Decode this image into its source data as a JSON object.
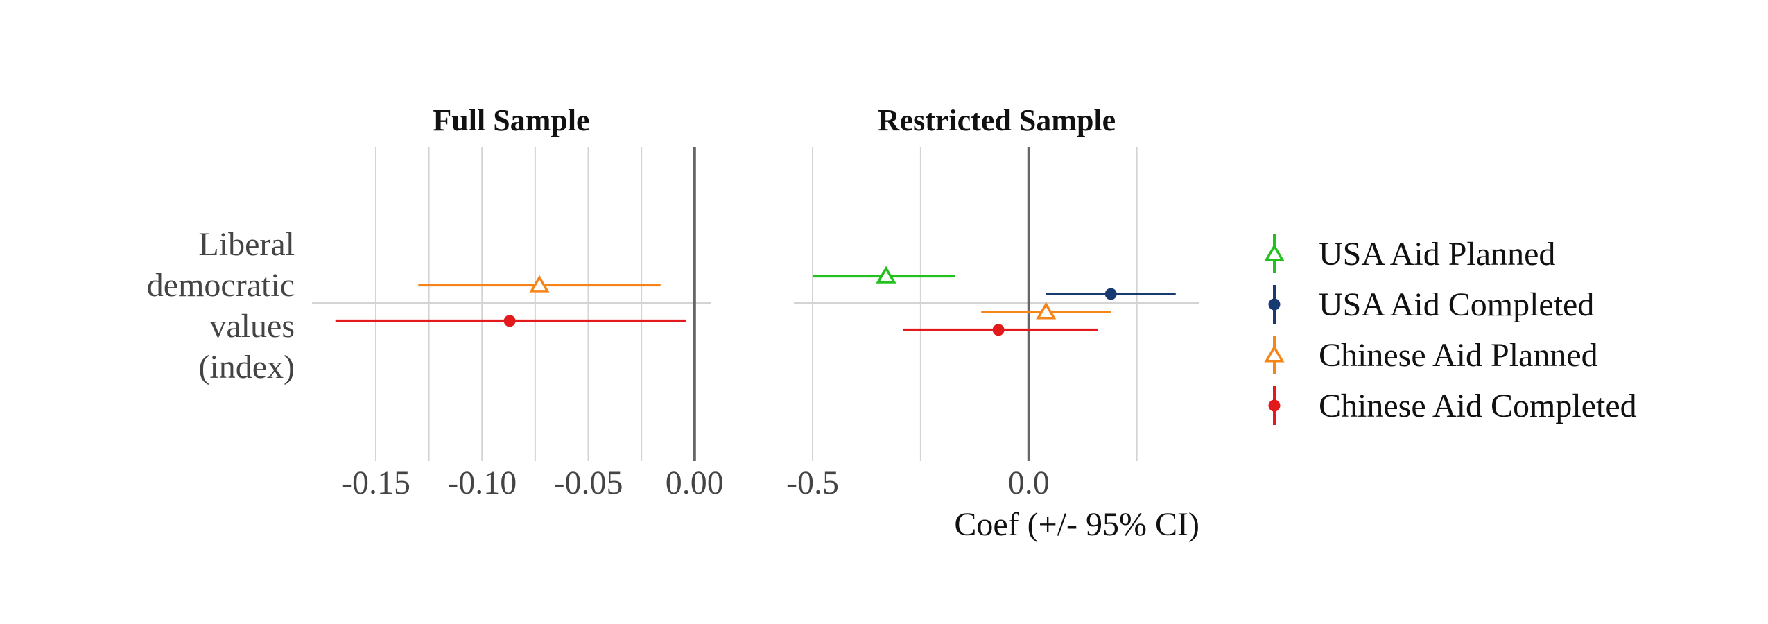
{
  "chart_data": {
    "type": "coefficient-plot",
    "x_axis_label": "Coef (+/- 95% CI)",
    "y_category": "Liberal democratic values (index)",
    "y_category_lines": [
      "Liberal",
      "democratic",
      "values",
      "(index)"
    ],
    "series": [
      {
        "name": "USA Aid Planned",
        "color": "#22c11e",
        "marker": "open-triangle"
      },
      {
        "name": "USA Aid Completed",
        "color": "#173a70",
        "marker": "filled-circle"
      },
      {
        "name": "Chinese Aid Planned",
        "color": "#f58518",
        "marker": "open-triangle"
      },
      {
        "name": "Chinese Aid Completed",
        "color": "#e31a1c",
        "marker": "filled-circle"
      }
    ],
    "panels": [
      {
        "title": "Full Sample",
        "xlim": [
          -0.18,
          0.003
        ],
        "ticks": [
          -0.15,
          -0.1,
          -0.05,
          0.0
        ],
        "tick_labels": [
          "-0.15",
          "-0.10",
          "-0.05",
          "0.00"
        ],
        "minor_gridlines": [
          -0.125,
          -0.075,
          -0.025
        ],
        "estimates": [
          {
            "series": "Chinese Aid Planned",
            "coef": -0.073,
            "ci_low": -0.13,
            "ci_high": -0.016,
            "offset": 0.07
          },
          {
            "series": "Chinese Aid Completed",
            "coef": -0.087,
            "ci_low": -0.169,
            "ci_high": -0.004,
            "offset": -0.07
          }
        ]
      },
      {
        "title": "Restricted Sample",
        "xlim": [
          -0.5,
          0.35
        ],
        "ticks": [
          -0.5,
          0.0
        ],
        "tick_labels": [
          "-0.5",
          "0.0"
        ],
        "minor_gridlines": [
          -0.25,
          0.25
        ],
        "estimates": [
          {
            "series": "USA Aid Planned",
            "coef": -0.33,
            "ci_low": -0.5,
            "ci_high": -0.17,
            "offset": 0.105
          },
          {
            "series": "USA Aid Completed",
            "coef": 0.19,
            "ci_low": 0.04,
            "ci_high": 0.34,
            "offset": 0.035
          },
          {
            "series": "Chinese Aid Planned",
            "coef": 0.04,
            "ci_low": -0.11,
            "ci_high": 0.19,
            "offset": -0.035
          },
          {
            "series": "Chinese Aid Completed",
            "coef": -0.07,
            "ci_low": -0.29,
            "ci_high": 0.16,
            "offset": -0.105
          }
        ]
      }
    ]
  }
}
